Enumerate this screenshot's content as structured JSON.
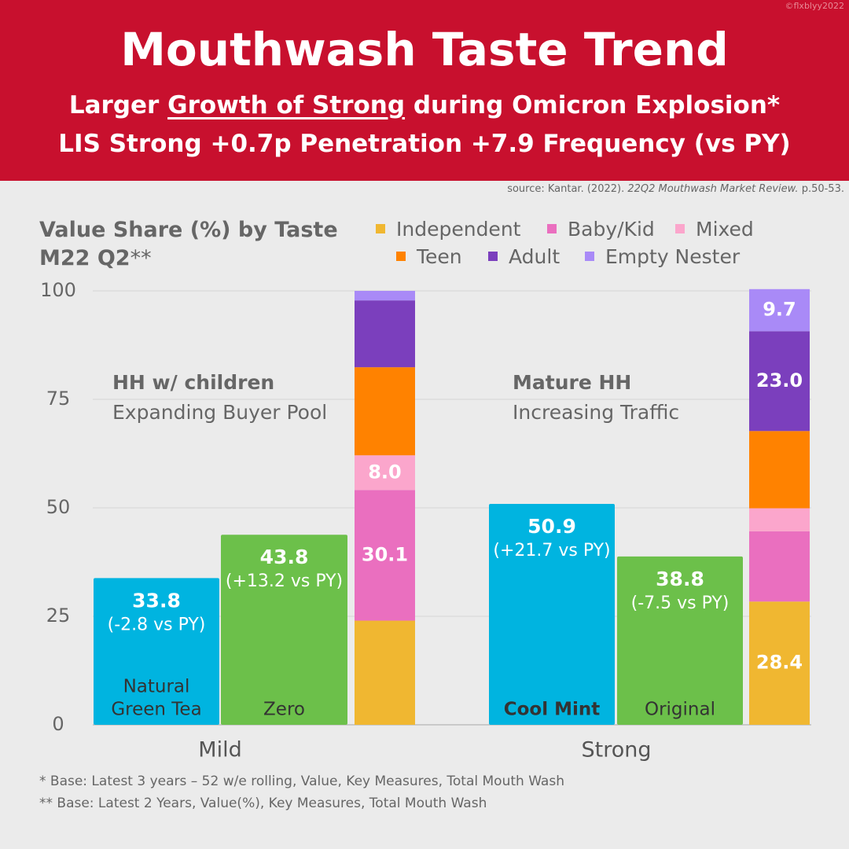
{
  "header": {
    "title": "Mouthwash Taste Trend",
    "subtitle_pre": "Larger ",
    "subtitle_underlined": "Growth of Strong",
    "subtitle_post": " during Omicron Explosion*",
    "subtitle2": "LIS Strong +0.7p Penetration +7.9 Frequency (vs PY)",
    "credit": "©flxblyy2022"
  },
  "source": {
    "pre": "source: Kantar. (2022). ",
    "italic": "22Q2 Mouthwash Market Review.",
    "post": " p.50-53."
  },
  "chart_title": {
    "line1": "Value Share (%) by Taste",
    "line2_bold": "M22 Q2",
    "line2_rest": "**"
  },
  "annotations": {
    "mild_heading": "HH w/ children",
    "mild_text": "Expanding Buyer Pool",
    "strong_heading": "Mature HH",
    "strong_text": "Increasing Traffic"
  },
  "footnotes": [
    "* Base: Latest 3 years – 52 w/e rolling, Value, Key Measures, Total Mouth Wash",
    "** Base: Latest 2 Years, Value(%), Key Measures, Total Mouth Wash"
  ],
  "colors": {
    "banner": "#c8102e",
    "natural_green_tea": "#00b4e0",
    "zero": "#6cc04a",
    "cool_mint": "#00b4e0",
    "original": "#6cc04a",
    "Independent": "#f0b731",
    "Baby/Kid": "#ea6fbf",
    "Mixed": "#fba6cc",
    "Teen": "#ff8200",
    "Adult": "#7b3fbd",
    "Empty Nester": "#a98af7"
  },
  "chart_data": [
    {
      "type": "bar",
      "ylim": [
        0,
        100
      ],
      "yticks": [
        0,
        25,
        50,
        75,
        100
      ],
      "categories": [
        "Mild",
        "Strong"
      ],
      "bars": [
        {
          "group": "Mild",
          "name": "Natural Green Tea",
          "label_lines": [
            "Natural",
            "Green Tea"
          ],
          "value": 33.8,
          "value_label": "33.8",
          "change": "(-2.8 vs PY)",
          "color": "#00b4e0",
          "bold_name": false
        },
        {
          "group": "Mild",
          "name": "Zero",
          "label_lines": [
            "Zero"
          ],
          "value": 43.8,
          "value_label": "43.8",
          "change": "(+13.2 vs PY)",
          "color": "#6cc04a",
          "bold_name": false
        },
        {
          "group": "Strong",
          "name": "Cool Mint",
          "label_lines": [
            "Cool Mint"
          ],
          "value": 50.9,
          "value_label": "50.9",
          "change": "(+21.7 vs PY)",
          "color": "#00b4e0",
          "bold_name": true
        },
        {
          "group": "Strong",
          "name": "Original",
          "label_lines": [
            "Original"
          ],
          "value": 38.8,
          "value_label": "38.8",
          "change": "(-7.5 vs PY)",
          "color": "#6cc04a",
          "bold_name": false
        }
      ]
    },
    {
      "type": "stacked_bar",
      "ylim": [
        0,
        100
      ],
      "series_order": [
        "Independent",
        "Baby/Kid",
        "Mixed",
        "Teen",
        "Adult",
        "Empty Nester"
      ],
      "stacks": [
        {
          "group": "Mild",
          "values": {
            "Independent": 24.0,
            "Baby/Kid": 30.1,
            "Mixed": 8.0,
            "Teen": 20.3,
            "Adult": 15.4,
            "Empty Nester": 2.2
          },
          "labels": {
            "Baby/Kid": "30.1",
            "Mixed": "8.0"
          }
        },
        {
          "group": "Strong",
          "values": {
            "Independent": 28.4,
            "Baby/Kid": 16.2,
            "Mixed": 5.3,
            "Teen": 17.8,
            "Adult": 23.0,
            "Empty Nester": 9.7
          },
          "labels": {
            "Independent": "28.4",
            "Adult": "23.0",
            "Empty Nester": "9.7"
          }
        }
      ]
    }
  ],
  "legend": [
    {
      "name": "Independent",
      "color": "#f0b731"
    },
    {
      "name": "Baby/Kid",
      "color": "#ea6fbf"
    },
    {
      "name": "Mixed",
      "color": "#fba6cc"
    },
    {
      "name": "Teen",
      "color": "#ff8200"
    },
    {
      "name": "Adult",
      "color": "#7b3fbd"
    },
    {
      "name": "Empty Nester",
      "color": "#a98af7"
    }
  ]
}
